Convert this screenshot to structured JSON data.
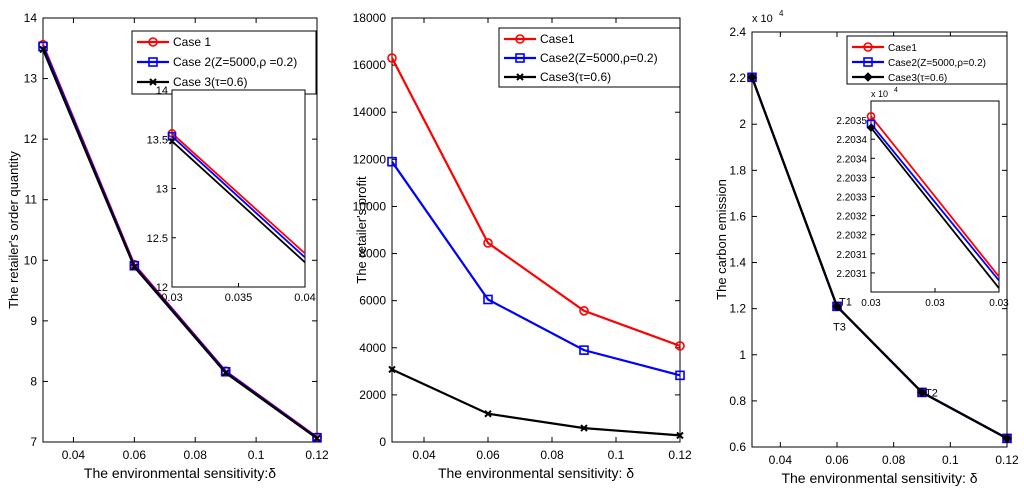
{
  "chart_data": [
    {
      "type": "line",
      "xlabel": "The environmental sensitivity:δ",
      "ylabel": "The retailer's order quantity",
      "xlim": [
        0.03,
        0.12
      ],
      "ylim": [
        7,
        14
      ],
      "xticks": [
        0.04,
        0.06,
        0.08,
        0.1,
        0.12
      ],
      "xtick_labels": [
        "0.04",
        "0.06",
        "0.08",
        "0.1",
        "0.12"
      ],
      "yticks": [
        7,
        8,
        9,
        10,
        11,
        12,
        13,
        14
      ],
      "ytick_labels": [
        "7",
        "8",
        "9",
        "10",
        "11",
        "12",
        "13",
        "14"
      ],
      "x": [
        0.03,
        0.06,
        0.09,
        0.12
      ],
      "series": [
        {
          "name": "Case 1",
          "color": "#ff0000",
          "marker": "circle",
          "values": [
            13.56,
            9.93,
            8.17,
            7.08
          ]
        },
        {
          "name": "Case 2(Z=5000,ρ =0.2)",
          "color": "#0000ff",
          "marker": "square",
          "values": [
            13.53,
            9.91,
            8.16,
            7.07
          ]
        },
        {
          "name": "Case 3(τ=0.6)",
          "color": "#000000",
          "marker": "x",
          "values": [
            13.48,
            9.89,
            8.14,
            7.06
          ]
        }
      ],
      "legend": "top-right",
      "grid": false,
      "inset": {
        "xlim": [
          0.03,
          0.04
        ],
        "ylim": [
          12,
          14
        ],
        "xticks": [
          0.03,
          0.035,
          0.04
        ],
        "xtick_labels": [
          "0.03",
          "0.035",
          "0.04"
        ],
        "yticks": [
          12,
          12.5,
          13,
          13.5,
          14
        ],
        "ytick_labels": [
          "12",
          "12.5",
          "13",
          "13.5",
          "14"
        ],
        "x": [
          0.03,
          0.04
        ],
        "series": [
          {
            "color": "#ff0000",
            "marker": "circle",
            "values": [
              13.56,
              12.34
            ]
          },
          {
            "color": "#0000ff",
            "marker": "square",
            "values": [
              13.53,
              12.3
            ]
          },
          {
            "color": "#000000",
            "marker": "x",
            "values": [
              13.48,
              12.25
            ]
          }
        ]
      }
    },
    {
      "type": "line",
      "xlabel": "The environmental sensitivity: δ",
      "ylabel": "The retailer's  profit",
      "xlim": [
        0.03,
        0.12
      ],
      "ylim": [
        0,
        18000
      ],
      "xticks": [
        0.04,
        0.06,
        0.08,
        0.1,
        0.12
      ],
      "xtick_labels": [
        "0.04",
        "0.06",
        "0.08",
        "0.1",
        "0.12"
      ],
      "yticks": [
        0,
        2000,
        4000,
        6000,
        8000,
        10000,
        12000,
        14000,
        16000,
        18000
      ],
      "ytick_labels": [
        "0",
        "2000",
        "4000",
        "6000",
        "8000",
        "10000",
        "12000",
        "14000",
        "16000",
        "18000"
      ],
      "x": [
        0.03,
        0.06,
        0.09,
        0.12
      ],
      "series": [
        {
          "name": "Case1",
          "color": "#ff0000",
          "marker": "circle",
          "values": [
            16300,
            8450,
            5570,
            4080
          ]
        },
        {
          "name": "Case2(Z=5000,ρ=0.2)",
          "color": "#0000ff",
          "marker": "square",
          "values": [
            11900,
            6050,
            3900,
            2830
          ]
        },
        {
          "name": "Case3(τ=0.6)",
          "color": "#000000",
          "marker": "x",
          "values": [
            3080,
            1200,
            590,
            280
          ]
        }
      ],
      "legend": "top-right",
      "grid": false
    },
    {
      "type": "line",
      "xlabel": "The environmental sensitivity: δ",
      "ylabel": "The carbon emission",
      "y_multiplier": "x 10",
      "y_exponent": "4",
      "xlim": [
        0.03,
        0.12
      ],
      "ylim": [
        0.6,
        2.4
      ],
      "xticks": [
        0.04,
        0.06,
        0.08,
        0.1,
        0.12
      ],
      "xtick_labels": [
        "0.04",
        "0.06",
        "0.08",
        "0.1",
        "0.12"
      ],
      "yticks": [
        0.6,
        0.8,
        1,
        1.2,
        1.4,
        1.6,
        1.8,
        2,
        2.2,
        2.4
      ],
      "ytick_labels": [
        "0.6",
        "0.8",
        "1",
        "1.2",
        "1.4",
        "1.6",
        "1.8",
        "2",
        "2.2",
        "2.4"
      ],
      "x": [
        0.03,
        0.06,
        0.09,
        0.12
      ],
      "series": [
        {
          "name": "Case1",
          "color": "#ff0000",
          "marker": "circle",
          "values": [
            2.2035,
            1.2101,
            0.8369,
            0.6375
          ]
        },
        {
          "name": "Case2(Z=5000,ρ=0.2)",
          "color": "#0000ff",
          "marker": "square",
          "values": [
            2.2035,
            1.21,
            0.8368,
            0.6374
          ]
        },
        {
          "name": "Case3(τ=0.6)",
          "color": "#000000",
          "marker": "diamond",
          "values": [
            2.2035,
            1.2099,
            0.8367,
            0.6373
          ]
        }
      ],
      "annotations": [
        "T1",
        "T3",
        "T2"
      ],
      "legend": "top-right",
      "grid": false,
      "inset": {
        "y_multiplier": "x 10",
        "y_exponent": "4",
        "xlim": [
          0.03,
          0.03001
        ],
        "ylim": [
          2.20305,
          2.20355
        ],
        "xticks": [
          0.03,
          0.030005,
          0.03001
        ],
        "xtick_labels": [
          "0.03",
          "0.03",
          "0.03"
        ],
        "yticks": [
          2.2031,
          2.20315,
          2.2032,
          2.20325,
          2.2033,
          2.20335,
          2.2034,
          2.20345,
          2.2035
        ],
        "ytick_labels": [
          "2.2031",
          "2.2031",
          "2.2032",
          "2.2032",
          "2.2033",
          "2.2033",
          "2.2034",
          "2.2034",
          "2.2035"
        ],
        "x": [
          0.03,
          0.03001
        ],
        "series": [
          {
            "color": "#ff0000",
            "marker": "circle",
            "values": [
              2.20351,
              2.20309
            ]
          },
          {
            "color": "#0000ff",
            "marker": "square",
            "values": [
              2.20349,
              2.20308
            ]
          },
          {
            "color": "#000000",
            "marker": "diamond",
            "values": [
              2.20348,
              2.20306
            ]
          }
        ]
      }
    }
  ]
}
